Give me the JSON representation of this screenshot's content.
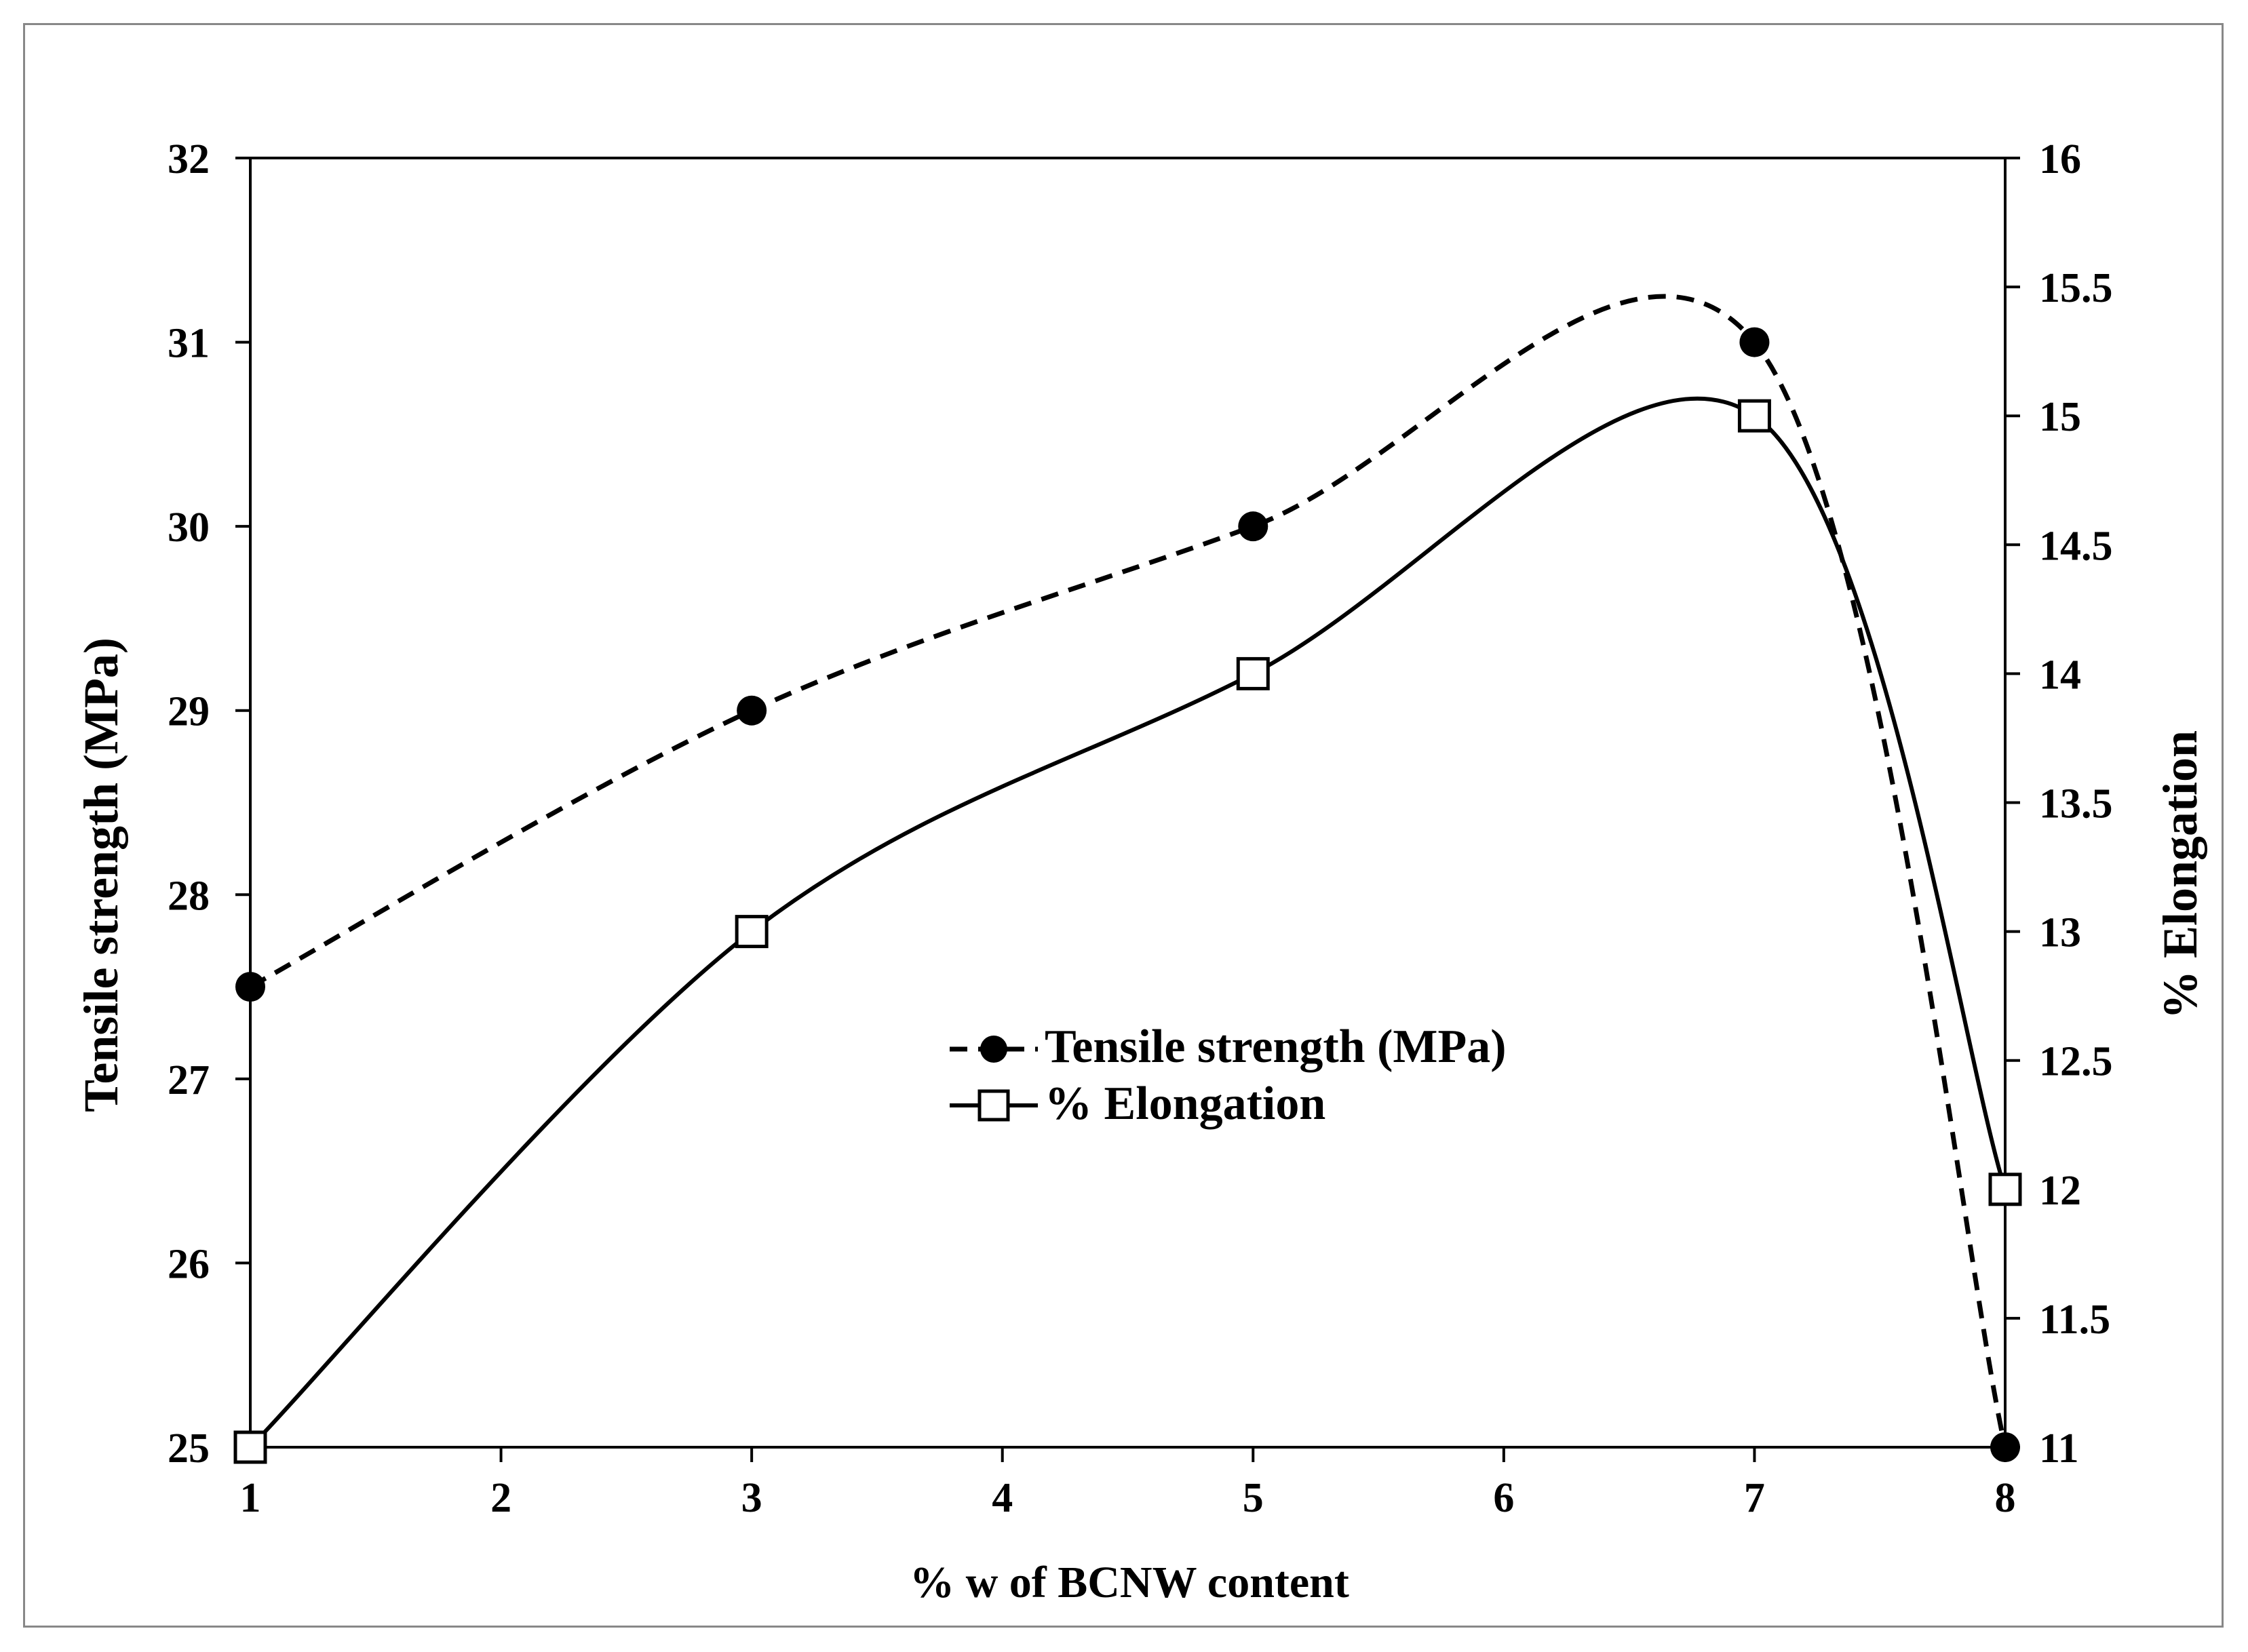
{
  "chart_data": {
    "type": "line",
    "title": "",
    "xlabel": "% w of BCNW content",
    "ylabel_left": "Tensile strength (MPa)",
    "ylabel_right": "% Elongation",
    "xlim": [
      1,
      8
    ],
    "ylim_left": [
      25,
      32
    ],
    "ylim_right": [
      11,
      16
    ],
    "x_ticks": [
      "1",
      "2",
      "3",
      "4",
      "5",
      "6",
      "7",
      "8"
    ],
    "y_left_ticks": [
      "25",
      "26",
      "27",
      "28",
      "29",
      "30",
      "31",
      "32"
    ],
    "y_right_ticks": [
      "11",
      "11.5",
      "12",
      "12.5",
      "13",
      "13.5",
      "14",
      "14.5",
      "15",
      "15.5",
      "16"
    ],
    "grid": false,
    "legend_position": "center",
    "series": [
      {
        "name": "Tensile strength (MPa)",
        "axis": "left",
        "marker": "filled-circle",
        "line_style": "dashed",
        "smooth": true,
        "x": [
          1,
          3,
          5,
          7,
          8
        ],
        "values": [
          27.5,
          29,
          30,
          31,
          25
        ]
      },
      {
        "name": "% Elongation",
        "axis": "right",
        "marker": "open-square",
        "line_style": "solid",
        "smooth": true,
        "x": [
          1,
          3,
          5,
          7,
          8
        ],
        "values": [
          11,
          13,
          14,
          15,
          12
        ]
      }
    ]
  },
  "colors": {
    "ink": "#000000",
    "frame": "#888888",
    "background": "#ffffff"
  }
}
